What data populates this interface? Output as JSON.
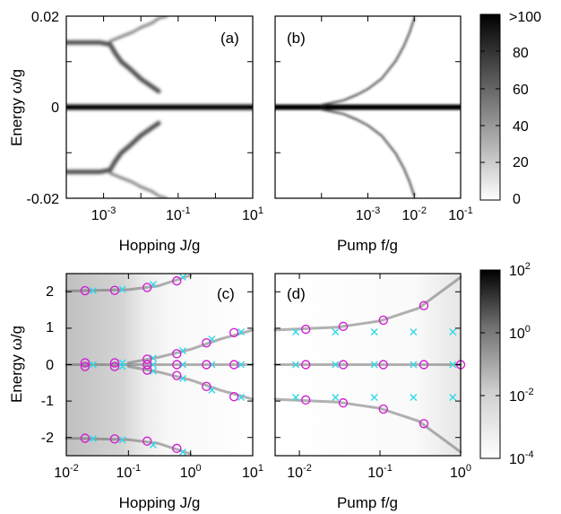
{
  "chart_data": [
    {
      "panel": "(a)",
      "type": "heatmap",
      "xlabel": "Hopping J/g",
      "ylabel": "Energy ω/g",
      "x_scale": "log",
      "xlim": [
        0.0001,
        10
      ],
      "ylim": [
        -0.02,
        0.02
      ],
      "xticks": [
        "10-3",
        "10-1",
        "101"
      ],
      "yticks": [
        "0.02",
        "0",
        "-0.02"
      ],
      "ridges": [
        {
          "x": [
            0.0001,
            0.001,
            0.002,
            0.003,
            0.005,
            0.01,
            0.03,
            10
          ],
          "y": [
            0.0,
            0.0,
            0.0,
            0.0,
            0.0,
            0.0,
            0.0,
            0.0
          ]
        },
        {
          "x": [
            0.0001,
            0.0008,
            0.0015,
            0.002,
            0.003,
            0.005,
            0.01,
            0.02,
            0.03
          ],
          "y": [
            0.0142,
            0.0142,
            0.0138,
            0.012,
            0.01,
            0.0085,
            0.0062,
            0.0045,
            0.0035
          ]
        },
        {
          "x": [
            0.0001,
            0.0008,
            0.0015,
            0.002,
            0.003,
            0.005,
            0.01,
            0.02,
            0.03
          ],
          "y": [
            -0.0142,
            -0.0142,
            -0.0138,
            -0.012,
            -0.01,
            -0.0085,
            -0.0062,
            -0.0045,
            -0.0035
          ]
        },
        {
          "x": [
            0.0015,
            0.003,
            0.006,
            0.01,
            0.02,
            0.03,
            0.05
          ],
          "y": [
            0.0145,
            0.0155,
            0.0165,
            0.0175,
            0.0185,
            0.0195,
            0.02
          ]
        },
        {
          "x": [
            0.0015,
            0.003,
            0.006,
            0.01,
            0.02,
            0.03,
            0.05
          ],
          "y": [
            -0.0145,
            -0.0155,
            -0.0165,
            -0.0175,
            -0.0185,
            -0.0195,
            -0.02
          ]
        }
      ]
    },
    {
      "panel": "(b)",
      "type": "heatmap",
      "xlabel": "Pump f/g",
      "x_scale": "log",
      "xlim": [
        1e-05,
        0.1
      ],
      "ylim": [
        -0.02,
        0.02
      ],
      "xticks": [
        "10-3",
        "10-2",
        "10-1"
      ],
      "ridges": [
        {
          "x": [
            1e-05,
            0.0001,
            0.001,
            0.01,
            0.1
          ],
          "y": [
            0.0,
            0.0,
            0.0,
            0.0,
            0.0
          ]
        },
        {
          "x": [
            0.0001,
            0.0003,
            0.0006,
            0.001,
            0.002,
            0.004,
            0.006,
            0.008,
            0.01
          ],
          "y": [
            0.0005,
            0.0015,
            0.0028,
            0.004,
            0.0063,
            0.0102,
            0.0135,
            0.0165,
            0.0195
          ]
        },
        {
          "x": [
            0.0001,
            0.0003,
            0.0006,
            0.001,
            0.002,
            0.004,
            0.006,
            0.008,
            0.01
          ],
          "y": [
            -0.0005,
            -0.0015,
            -0.0028,
            -0.004,
            -0.0063,
            -0.0102,
            -0.0135,
            -0.0165,
            -0.0195
          ]
        }
      ]
    },
    {
      "panel": "(c)",
      "type": "heatmap",
      "xlabel": "Hopping J/g",
      "ylabel": "Energy ω/g",
      "x_scale": "log",
      "xlim": [
        0.01,
        10
      ],
      "ylim": [
        -2.5,
        2.5
      ],
      "xticks": [
        "10-2",
        "10-1",
        "100",
        "101"
      ],
      "yticks": [
        "2",
        "1",
        "0",
        "-1",
        "-2"
      ],
      "circles": [
        {
          "x": 0.02,
          "y": 2.03
        },
        {
          "x": 0.06,
          "y": 2.04
        },
        {
          "x": 0.2,
          "y": 2.12
        },
        {
          "x": 0.6,
          "y": 2.3
        },
        {
          "x": 0.02,
          "y": 0.05
        },
        {
          "x": 0.02,
          "y": -0.05
        },
        {
          "x": 0.06,
          "y": 0.05
        },
        {
          "x": 0.06,
          "y": -0.05
        },
        {
          "x": 0.2,
          "y": 0.15
        },
        {
          "x": 0.2,
          "y": 0.0
        },
        {
          "x": 0.2,
          "y": -0.15
        },
        {
          "x": 0.6,
          "y": 0.3
        },
        {
          "x": 0.6,
          "y": 0.0
        },
        {
          "x": 0.6,
          "y": -0.3
        },
        {
          "x": 1.8,
          "y": 0.6
        },
        {
          "x": 1.8,
          "y": 0.0
        },
        {
          "x": 1.8,
          "y": -0.6
        },
        {
          "x": 5,
          "y": 0.88
        },
        {
          "x": 5,
          "y": 0.0
        },
        {
          "x": 5,
          "y": -0.88
        },
        {
          "x": 0.02,
          "y": -2.02
        },
        {
          "x": 0.06,
          "y": -2.04
        },
        {
          "x": 0.2,
          "y": -2.1
        },
        {
          "x": 0.6,
          "y": -2.3
        }
      ],
      "crosses": [
        {
          "x": 0.027,
          "y": 2.03
        },
        {
          "x": 0.08,
          "y": 2.07
        },
        {
          "x": 0.25,
          "y": 2.2
        },
        {
          "x": 0.75,
          "y": 2.4
        },
        {
          "x": 0.027,
          "y": 0.0
        },
        {
          "x": 0.08,
          "y": 0.05
        },
        {
          "x": 0.08,
          "y": -0.05
        },
        {
          "x": 0.25,
          "y": 0.18
        },
        {
          "x": 0.25,
          "y": 0.0
        },
        {
          "x": 0.25,
          "y": -0.18
        },
        {
          "x": 0.75,
          "y": 0.38
        },
        {
          "x": 0.75,
          "y": 0.0
        },
        {
          "x": 0.75,
          "y": -0.38
        },
        {
          "x": 2.2,
          "y": 0.7
        },
        {
          "x": 2.2,
          "y": 0.0
        },
        {
          "x": 2.2,
          "y": -0.7
        },
        {
          "x": 6.5,
          "y": 0.9
        },
        {
          "x": 6.5,
          "y": 0.0
        },
        {
          "x": 6.5,
          "y": -0.9
        },
        {
          "x": 0.027,
          "y": -2.03
        },
        {
          "x": 0.08,
          "y": -2.07
        },
        {
          "x": 0.25,
          "y": -2.2
        },
        {
          "x": 0.75,
          "y": -2.4
        }
      ]
    },
    {
      "panel": "(d)",
      "type": "heatmap",
      "xlabel": "Pump f/g",
      "x_scale": "log",
      "xlim": [
        0.005,
        1
      ],
      "ylim": [
        -2.5,
        2.5
      ],
      "xticks": [
        "10-2",
        "10-1",
        "100"
      ],
      "circles": [
        {
          "x": 0.012,
          "y": 0.97
        },
        {
          "x": 0.035,
          "y": 1.05
        },
        {
          "x": 0.11,
          "y": 1.22
        },
        {
          "x": 0.35,
          "y": 1.62
        },
        {
          "x": 0.012,
          "y": 0.0
        },
        {
          "x": 0.035,
          "y": 0.0
        },
        {
          "x": 0.11,
          "y": 0.0
        },
        {
          "x": 0.35,
          "y": 0.0
        },
        {
          "x": 1.0,
          "y": 0.0
        },
        {
          "x": 0.012,
          "y": -0.97
        },
        {
          "x": 0.035,
          "y": -1.05
        },
        {
          "x": 0.11,
          "y": -1.22
        },
        {
          "x": 0.35,
          "y": -1.62
        }
      ],
      "crosses": [
        {
          "x": 0.009,
          "y": 0.9
        },
        {
          "x": 0.028,
          "y": 0.9
        },
        {
          "x": 0.085,
          "y": 0.9
        },
        {
          "x": 0.26,
          "y": 0.9
        },
        {
          "x": 0.8,
          "y": 0.9
        },
        {
          "x": 0.009,
          "y": 0.0
        },
        {
          "x": 0.028,
          "y": 0.0
        },
        {
          "x": 0.085,
          "y": 0.0
        },
        {
          "x": 0.26,
          "y": 0.0
        },
        {
          "x": 0.8,
          "y": 0.0
        },
        {
          "x": 0.009,
          "y": -0.9
        },
        {
          "x": 0.028,
          "y": -0.9
        },
        {
          "x": 0.085,
          "y": -0.9
        },
        {
          "x": 0.26,
          "y": -0.9
        },
        {
          "x": 0.8,
          "y": -0.9
        }
      ]
    }
  ],
  "colorbars": {
    "top": {
      "scale": "linear",
      "range": [
        0,
        100
      ],
      "ticks": [
        ">100",
        "80",
        "60",
        "40",
        "20",
        "0"
      ]
    },
    "bottom": {
      "scale": "log",
      "range": [
        0.0001,
        100
      ],
      "ticks": [
        "10^2",
        "10^0",
        "10^-2",
        "10^-4"
      ]
    }
  },
  "colors": {
    "circle": "#d020d0",
    "cross": "#30d8e8",
    "ridge": "#000000"
  }
}
